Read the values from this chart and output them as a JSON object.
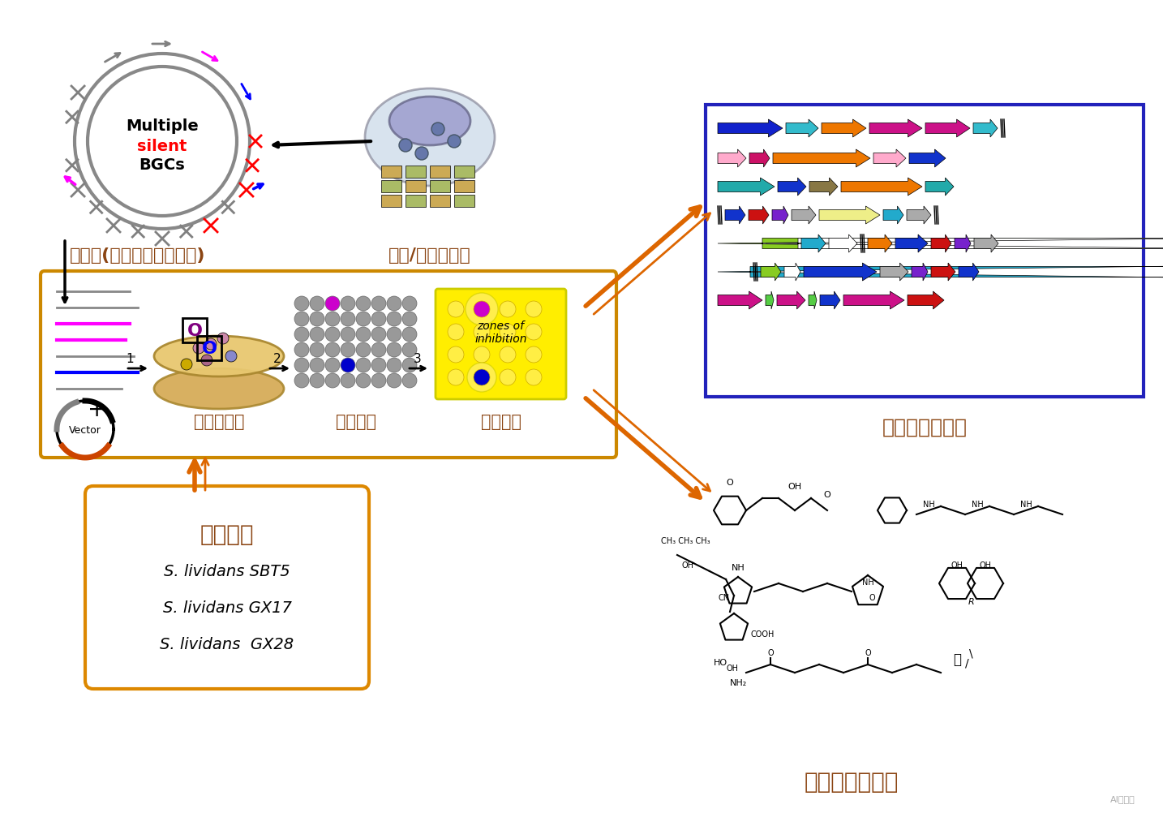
{
  "bg_color": "#ffffff",
  "orange_color": "#CC7722",
  "dark_orange": "#D2691E",
  "title_color": "#8B4513",
  "red_color": "#CC0000",
  "blue_color": "#0000CC",
  "label_genome": "基因组(大量沉默基因簇！)",
  "label_soil": "土壤/海洋微生物",
  "label_library": "基因组文库",
  "label_expression": "异源表达",
  "label_screening": "抗菌筛选",
  "label_bgc": "生物合成基因簇",
  "label_activate": "高效激活",
  "label_antibacterial": "抗菌活性化合物",
  "label_s1": "S. lividans SBT5",
  "label_s2": "S. lividans GX17",
  "label_s3": "S. lividans  GX28",
  "label_multiple": "Multiple",
  "label_silent": "silent",
  "label_bgcs": "BGCs",
  "label_zones": "zones of\ninhibition",
  "label_vector": "Vector"
}
